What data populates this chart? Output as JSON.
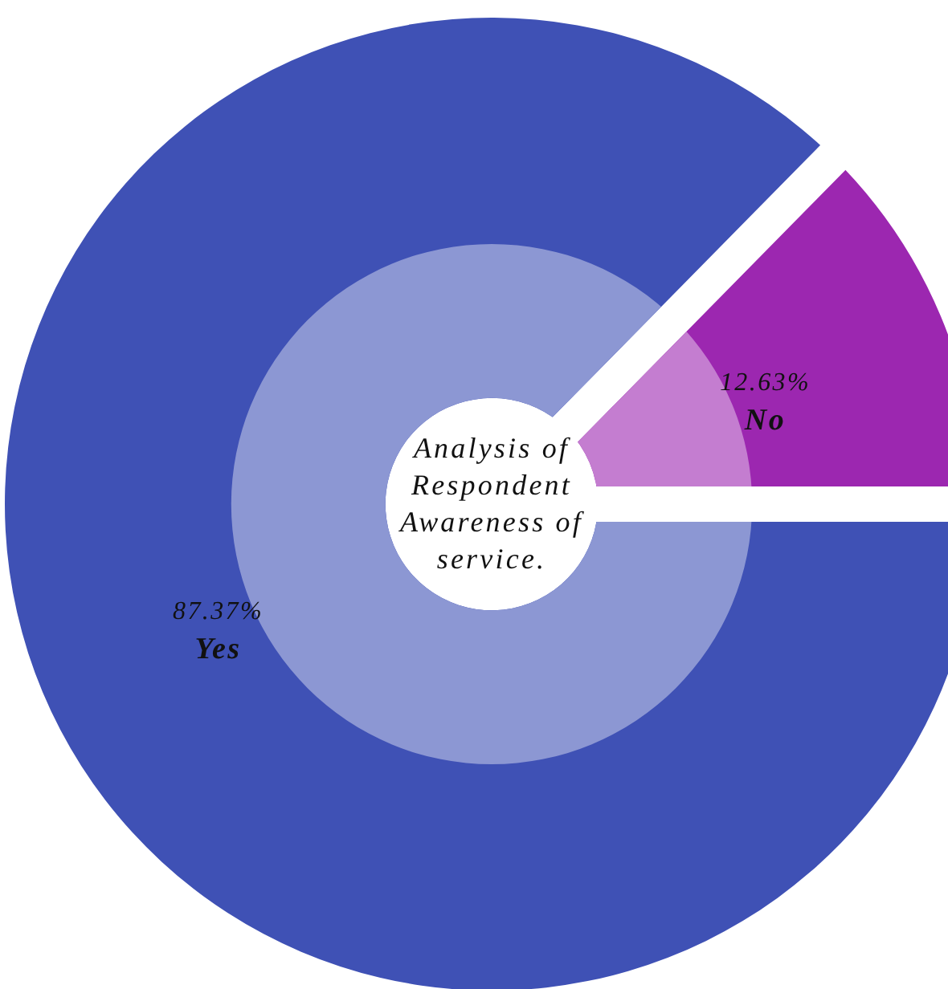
{
  "chart_data": {
    "type": "donut",
    "title": "Analysis of Respondent Awareness of service.",
    "categories": [
      "Yes",
      "No"
    ],
    "values": [
      87.37,
      12.63
    ],
    "colors": [
      "#3f51b5",
      "#9c27b0"
    ],
    "value_labels": [
      "87.37%",
      "12.63%"
    ]
  }
}
